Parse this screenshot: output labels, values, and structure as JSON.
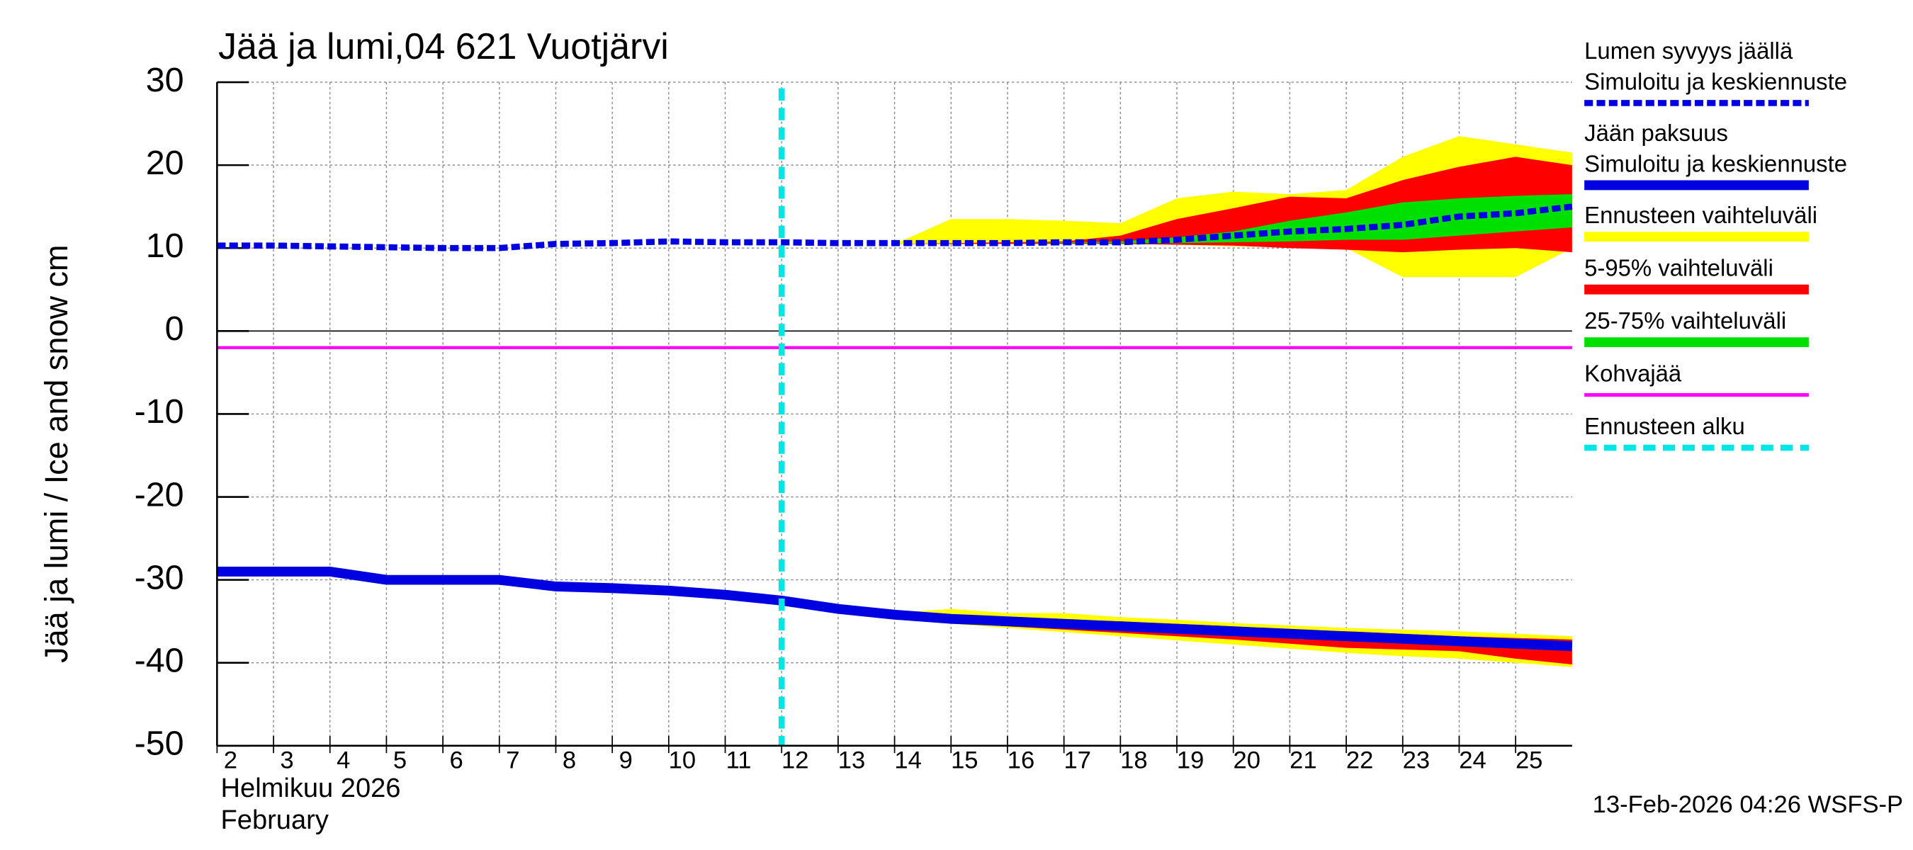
{
  "chart_data": {
    "type": "line",
    "title": "Jää ja lumi,04 621 Vuotjärvi",
    "ylabel": "Jää ja lumi / Ice and snow    cm",
    "xlabel_lines": [
      "Helmikuu  2026",
      "February"
    ],
    "timestamp": "13-Feb-2026 04:26 WSFS-P",
    "grid": true,
    "legend": "right",
    "x": [
      2,
      3,
      4,
      5,
      6,
      7,
      8,
      9,
      10,
      11,
      12,
      13,
      14,
      15,
      16,
      17,
      18,
      19,
      20,
      21,
      22,
      23,
      24,
      25,
      26
    ],
    "xlim": [
      2,
      26
    ],
    "xticks": [
      2,
      3,
      4,
      5,
      6,
      7,
      8,
      9,
      10,
      11,
      12,
      13,
      14,
      15,
      16,
      17,
      18,
      19,
      20,
      21,
      22,
      23,
      24,
      25
    ],
    "ylim": [
      -50,
      30
    ],
    "yticks": [
      -50,
      -40,
      -30,
      -20,
      -10,
      0,
      10,
      20,
      30
    ],
    "bands": [
      {
        "name": "Ennusteen vaihteluväli",
        "color": "#ffff00",
        "snow": {
          "high": [
            null,
            null,
            null,
            null,
            null,
            null,
            null,
            null,
            null,
            null,
            10.5,
            10.5,
            10.5,
            13.5,
            13.5,
            13.3,
            13,
            16,
            16.8,
            16.5,
            17,
            21,
            23.5,
            22.5,
            21.5
          ],
          "low": [
            null,
            null,
            null,
            null,
            null,
            null,
            null,
            null,
            null,
            null,
            10.5,
            10.5,
            10.5,
            10.5,
            10.5,
            10.5,
            10.5,
            10.4,
            10.2,
            10.1,
            10,
            6.5,
            6.5,
            6.5,
            10
          ]
        },
        "ice": {
          "high": [
            null,
            null,
            null,
            null,
            null,
            null,
            null,
            null,
            null,
            null,
            -32.5,
            -33.5,
            -34,
            -33.5,
            -34,
            -34,
            -34.5,
            -34.8,
            -35.2,
            -35.5,
            -35.8,
            -36,
            -36.2,
            -36.5,
            -36.8
          ],
          "low": [
            null,
            null,
            null,
            null,
            null,
            null,
            null,
            null,
            null,
            null,
            -32.5,
            -33.5,
            -34.3,
            -35.3,
            -35.8,
            -36.3,
            -36.8,
            -37.3,
            -37.8,
            -38.3,
            -38.8,
            -39.2,
            -39.5,
            -40,
            -40.5
          ]
        }
      },
      {
        "name": "5-95% vaihteluväli",
        "color": "#ff0000",
        "snow": {
          "high": [
            null,
            null,
            null,
            null,
            null,
            null,
            null,
            null,
            null,
            null,
            10.5,
            10.5,
            10.5,
            10.6,
            10.7,
            10.8,
            11.5,
            13.5,
            14.8,
            16.2,
            16,
            18.2,
            19.8,
            21,
            20
          ],
          "low": [
            null,
            null,
            null,
            null,
            null,
            null,
            null,
            null,
            null,
            null,
            10.5,
            10.5,
            10.5,
            10.5,
            10.5,
            10.5,
            10.5,
            10.4,
            10.3,
            10,
            9.8,
            9.5,
            9.8,
            10,
            9.5
          ]
        },
        "ice": {
          "high": [
            null,
            null,
            null,
            null,
            null,
            null,
            null,
            null,
            null,
            null,
            -32.5,
            -33.5,
            -34,
            -34.2,
            -34.5,
            -34.8,
            -35,
            -35.3,
            -35.6,
            -36,
            -36.2,
            -36.5,
            -36.8,
            -37,
            -37.2
          ],
          "low": [
            null,
            null,
            null,
            null,
            null,
            null,
            null,
            null,
            null,
            null,
            -32.5,
            -33.5,
            -34.3,
            -35.2,
            -35.6,
            -36,
            -36.4,
            -36.8,
            -37.2,
            -37.7,
            -38.2,
            -38.4,
            -38.6,
            -39.5,
            -40.2
          ]
        }
      },
      {
        "name": "25-75% vaihteluväli",
        "color": "#00e000",
        "snow": {
          "high": [
            null,
            null,
            null,
            null,
            null,
            null,
            null,
            null,
            null,
            null,
            10.6,
            10.6,
            10.6,
            10.6,
            10.6,
            10.7,
            10.8,
            11.3,
            12,
            13.3,
            14.3,
            15.5,
            16,
            16.3,
            16.5
          ],
          "low": [
            null,
            null,
            null,
            null,
            null,
            null,
            null,
            null,
            null,
            null,
            10.6,
            10.6,
            10.6,
            10.6,
            10.6,
            10.6,
            10.6,
            10.6,
            10.7,
            10.8,
            11,
            11,
            11.5,
            12,
            12.5
          ]
        },
        "ice": {
          "high": [
            null,
            null,
            null,
            null,
            null,
            null,
            null,
            null,
            null,
            null,
            -32.5,
            -33.3,
            -33.9,
            -34.3,
            -34.6,
            -34.9,
            -35.2,
            -35.5,
            -35.8,
            -36.1,
            -36.4,
            -36.7,
            -37,
            -37.2,
            -37.5
          ],
          "low": [
            null,
            null,
            null,
            null,
            null,
            null,
            null,
            null,
            null,
            null,
            -32.5,
            -33.7,
            -34.5,
            -35.1,
            -35.4,
            -35.7,
            -36,
            -36.3,
            -36.6,
            -36.9,
            -37.2,
            -37.5,
            -37.8,
            -38.2,
            -38.5
          ]
        }
      }
    ],
    "series": [
      {
        "group": "Lumen syvyys jäällä",
        "name": "Simuloitu ja keskiennuste",
        "color": "#0000e0",
        "dashed": true,
        "values": [
          10.3,
          10.3,
          10.2,
          10.1,
          10,
          10,
          10.5,
          10.6,
          10.8,
          10.7,
          10.7,
          10.6,
          10.6,
          10.6,
          10.6,
          10.7,
          10.7,
          11,
          11.5,
          12,
          12.3,
          12.8,
          13.8,
          14.2,
          15
        ]
      },
      {
        "group": "Jään paksuus",
        "name": "Simuloitu ja keskiennuste",
        "color": "#0000e0",
        "dashed": false,
        "values": [
          -29,
          -29,
          -29,
          -30,
          -30,
          -30,
          -30.8,
          -31,
          -31.3,
          -31.8,
          -32.5,
          -33.5,
          -34.2,
          -34.7,
          -35,
          -35.3,
          -35.6,
          -35.9,
          -36.2,
          -36.5,
          -36.8,
          -37.1,
          -37.4,
          -37.7,
          -38
        ]
      }
    ],
    "hline": {
      "name": "Kohvajää",
      "color": "#ff00ff",
      "value": -2
    },
    "vline": {
      "name": "Ennusteen alku",
      "color": "#00e5e5",
      "value": 12
    }
  }
}
